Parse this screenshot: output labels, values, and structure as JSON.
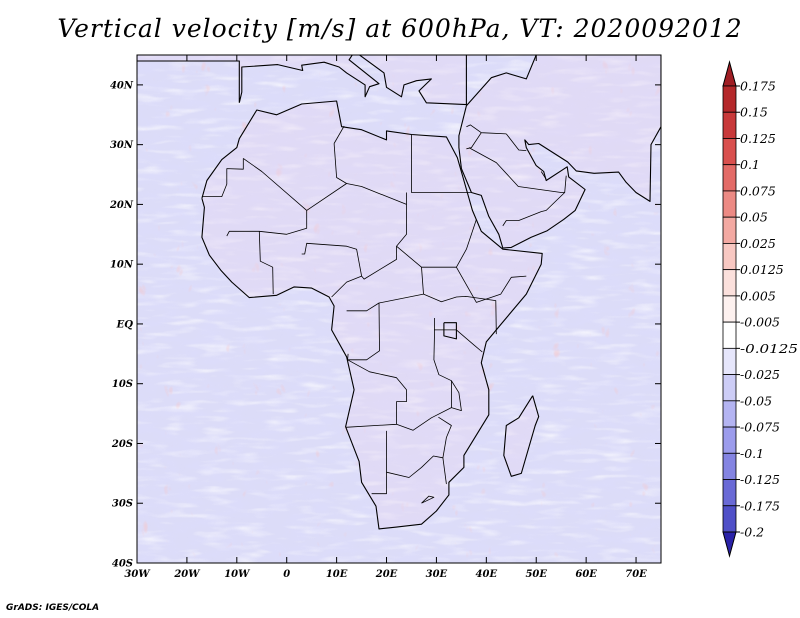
{
  "title": "Vertical velocity [m/s] at 600hPa, VT: 2020092012",
  "credit": "GrADS: IGES/COLA",
  "map": {
    "lon_range": [
      -30,
      75
    ],
    "lat_range": [
      -40,
      45
    ],
    "lon_ticks": [
      {
        "value": -30,
        "label": "30W"
      },
      {
        "value": -20,
        "label": "20W"
      },
      {
        "value": -10,
        "label": "10W"
      },
      {
        "value": 0,
        "label": "0"
      },
      {
        "value": 10,
        "label": "10E"
      },
      {
        "value": 20,
        "label": "20E"
      },
      {
        "value": 30,
        "label": "30E"
      },
      {
        "value": 40,
        "label": "40E"
      },
      {
        "value": 50,
        "label": "50E"
      },
      {
        "value": 60,
        "label": "60E"
      },
      {
        "value": 70,
        "label": "70E"
      }
    ],
    "lat_ticks": [
      {
        "value": 40,
        "label": "40N"
      },
      {
        "value": 30,
        "label": "30N"
      },
      {
        "value": 20,
        "label": "20N"
      },
      {
        "value": 10,
        "label": "10N"
      },
      {
        "value": 0,
        "label": "EQ"
      },
      {
        "value": -10,
        "label": "10S"
      },
      {
        "value": -20,
        "label": "20S"
      },
      {
        "value": -30,
        "label": "30S"
      },
      {
        "value": -40,
        "label": "40S"
      }
    ]
  },
  "colorbar": {
    "levels": [
      {
        "label": "0.175",
        "color": "#b4282a"
      },
      {
        "label": "0.15",
        "color": "#c8393a"
      },
      {
        "label": "0.125",
        "color": "#d9504e"
      },
      {
        "label": "0.1",
        "color": "#e36b67"
      },
      {
        "label": "0.075",
        "color": "#ec8a84"
      },
      {
        "label": "0.05",
        "color": "#f3a9a2"
      },
      {
        "label": "0.025",
        "color": "#f8c8c2"
      },
      {
        "label": "0.0125",
        "color": "#fbe0dc"
      },
      {
        "label": "0.005",
        "color": "#fdf1ef"
      },
      {
        "label": "-0.005",
        "color": "#ffffff"
      },
      {
        "label": "-0.0125",
        "color": "#e6e6fb"
      },
      {
        "label": "-0.025",
        "color": "#cdcdf6"
      },
      {
        "label": "-0.05",
        "color": "#b4b4f2"
      },
      {
        "label": "-0.075",
        "color": "#9c9cec"
      },
      {
        "label": "-0.1",
        "color": "#8484e2"
      },
      {
        "label": "-0.125",
        "color": "#6a6ad6"
      },
      {
        "label": "-0.175",
        "color": "#5050c8"
      },
      {
        "label": "-0.2",
        "color": "#3838b8"
      }
    ],
    "top_triangle_color": "#a01e24",
    "bottom_triangle_color": "#2a22a8"
  },
  "colors": {
    "background_field": "#dcdcf8",
    "land_field": "#e8d6f0",
    "coast": "#000000"
  }
}
